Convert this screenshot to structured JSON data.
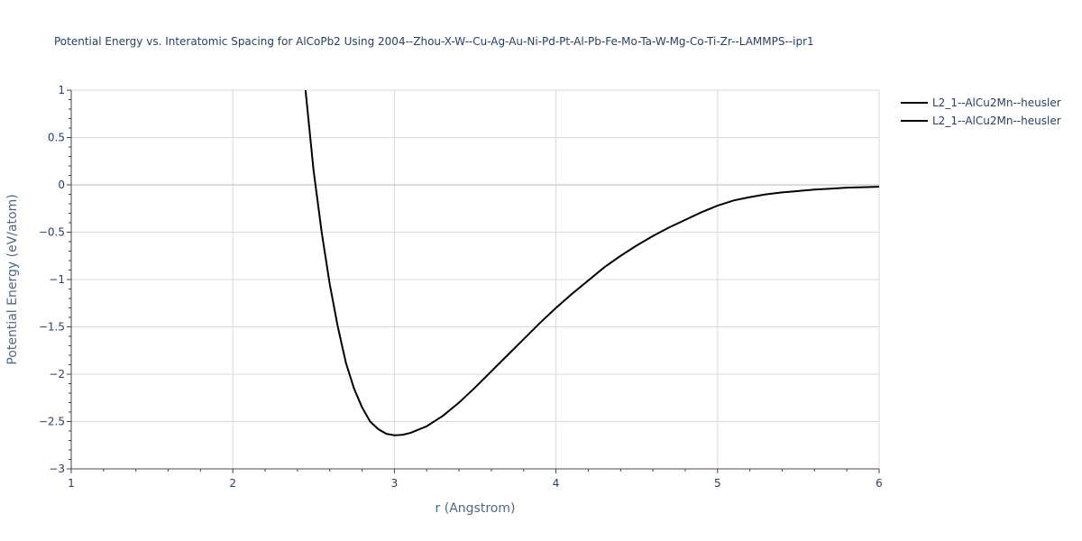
{
  "chart_data": {
    "type": "line",
    "title": "Potential Energy vs. Interatomic Spacing for AlCoPb2 Using 2004--Zhou-X-W--Cu-Ag-Au-Ni-Pd-Pt-Al-Pb-Fe-Mo-Ta-W-Mg-Co-Ti-Zr--LAMMPS--ipr1",
    "xlabel": "r (Angstrom)",
    "ylabel": "Potential Energy (eV/atom)",
    "xlim": [
      1,
      6
    ],
    "ylim": [
      -3,
      1
    ],
    "xticks": [
      1,
      2,
      3,
      4,
      5,
      6
    ],
    "xtick_labels": [
      "1",
      "2",
      "3",
      "4",
      "5",
      "6"
    ],
    "yticks": [
      1,
      0.5,
      0,
      -0.5,
      -1,
      -1.5,
      -2,
      -2.5,
      -3
    ],
    "ytick_labels": [
      "1",
      "0.5",
      "0",
      "−0.5",
      "−1",
      "−1.5",
      "−2",
      "−2.5",
      "−3"
    ],
    "grid": true,
    "legend_position": "top-right",
    "series": [
      {
        "name": "L2_1--AlCu2Mn--heusler",
        "color": "#000000",
        "x": [
          2.45,
          2.5,
          2.55,
          2.6,
          2.65,
          2.7,
          2.75,
          2.8,
          2.85,
          2.9,
          2.95,
          3.0,
          3.05,
          3.1,
          3.2,
          3.3,
          3.4,
          3.5,
          3.6,
          3.7,
          3.8,
          3.9,
          4.0,
          4.1,
          4.2,
          4.3,
          4.4,
          4.5,
          4.6,
          4.7,
          4.8,
          4.9,
          5.0,
          5.1,
          5.2,
          5.3,
          5.4,
          5.5,
          5.6,
          5.7,
          5.8,
          5.9,
          6.0
        ],
        "y": [
          1.0,
          0.15,
          -0.5,
          -1.05,
          -1.5,
          -1.88,
          -2.15,
          -2.35,
          -2.5,
          -2.58,
          -2.63,
          -2.645,
          -2.64,
          -2.62,
          -2.55,
          -2.44,
          -2.3,
          -2.14,
          -1.97,
          -1.8,
          -1.63,
          -1.46,
          -1.3,
          -1.15,
          -1.01,
          -0.87,
          -0.75,
          -0.64,
          -0.54,
          -0.45,
          -0.37,
          -0.29,
          -0.22,
          -0.165,
          -0.13,
          -0.1,
          -0.08,
          -0.065,
          -0.05,
          -0.04,
          -0.03,
          -0.025,
          -0.02
        ]
      },
      {
        "name": "L2_1--AlCu2Mn--heusler",
        "color": "#000000",
        "x": [],
        "y": []
      }
    ]
  }
}
